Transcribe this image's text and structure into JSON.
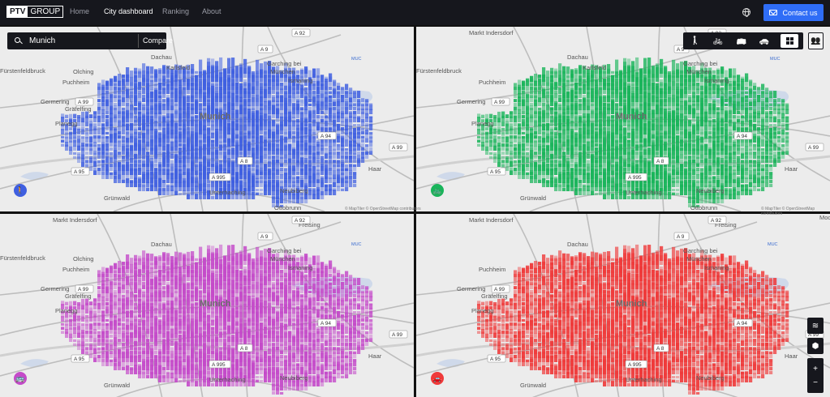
{
  "header": {
    "logo_left": "PTV",
    "logo_right": "GROUP",
    "nav": [
      {
        "label": "Home",
        "active": false
      },
      {
        "label": "City dashboard",
        "active": true
      },
      {
        "label": "Ranking",
        "active": false
      },
      {
        "label": "About",
        "active": false
      }
    ],
    "globe_icon": "globe-icon",
    "contact_label": "Contact us"
  },
  "search": {
    "value": "Munich",
    "compare_label": "Compare"
  },
  "modes": [
    {
      "name": "walk",
      "icon": "🚶",
      "active": false
    },
    {
      "name": "bike",
      "icon": "🚲",
      "active": false
    },
    {
      "name": "transit",
      "icon": "🚌",
      "active": false
    },
    {
      "name": "car",
      "icon": "🚗",
      "active": false
    },
    {
      "name": "grid",
      "icon": "grid-icon",
      "active": true
    }
  ],
  "people_icon": "👥",
  "colors": {
    "walk": "#3f5fe0",
    "bike": "#19b45a",
    "transit": "#c44ac9",
    "car": "#ef3a3a",
    "nav_bg": "#16171d",
    "accent": "#2f6df6"
  },
  "map_labels": {
    "city": "Munich",
    "places_tl": [
      "Dachau",
      "Garching bei",
      "München",
      "Ismaning",
      "Olching",
      "Puchheim",
      "Karlsfeld",
      "Germering",
      "Planegg",
      "Gräfelfing",
      "Grünwald",
      "Unterhaching",
      "Haar",
      "Neubiberg",
      "Ottobrunn",
      "Fürstenfeldbruck"
    ],
    "places_tr": [
      "Markt Indersdorf",
      "Dachau",
      "Garching bei",
      "München",
      "Ismaning",
      "Karlsfeld",
      "Puchheim",
      "Germering",
      "Planegg",
      "Grünwald",
      "Unterhaching",
      "Haar",
      "Neubiberg",
      "Ottobrunn",
      "Fürstenfeldbruck"
    ],
    "places_bl": [
      "Markt Indersdorf",
      "Freising",
      "Dachau",
      "Garching bei",
      "München",
      "Ismaning",
      "Olching",
      "Puchheim",
      "Germering",
      "Gräfelfing",
      "Planegg",
      "Grünwald",
      "Unterhaching",
      "Haar",
      "Neubiberg",
      "Fürstenfeldbruck"
    ],
    "places_br": [
      "Markt Indersdorf",
      "Freising",
      "Dachau",
      "Garching bei",
      "München",
      "Ismaning",
      "Puchheim",
      "Germering",
      "Planegg",
      "Gräfelfing",
      "Grünwald",
      "Unterhaching",
      "Haar",
      "Neubiberg",
      "Moos"
    ],
    "roads": [
      "A 99",
      "A 94",
      "A 8",
      "A 995",
      "A 95",
      "A 92",
      "A 9"
    ],
    "airport": "MUC",
    "attribution": "© MapTiler © OpenStreetMap contributors"
  },
  "map_controls": {
    "layers_icon": "layers-icon",
    "cube_icon": "3d-icon",
    "zoom_in": "+",
    "zoom_out": "−"
  }
}
